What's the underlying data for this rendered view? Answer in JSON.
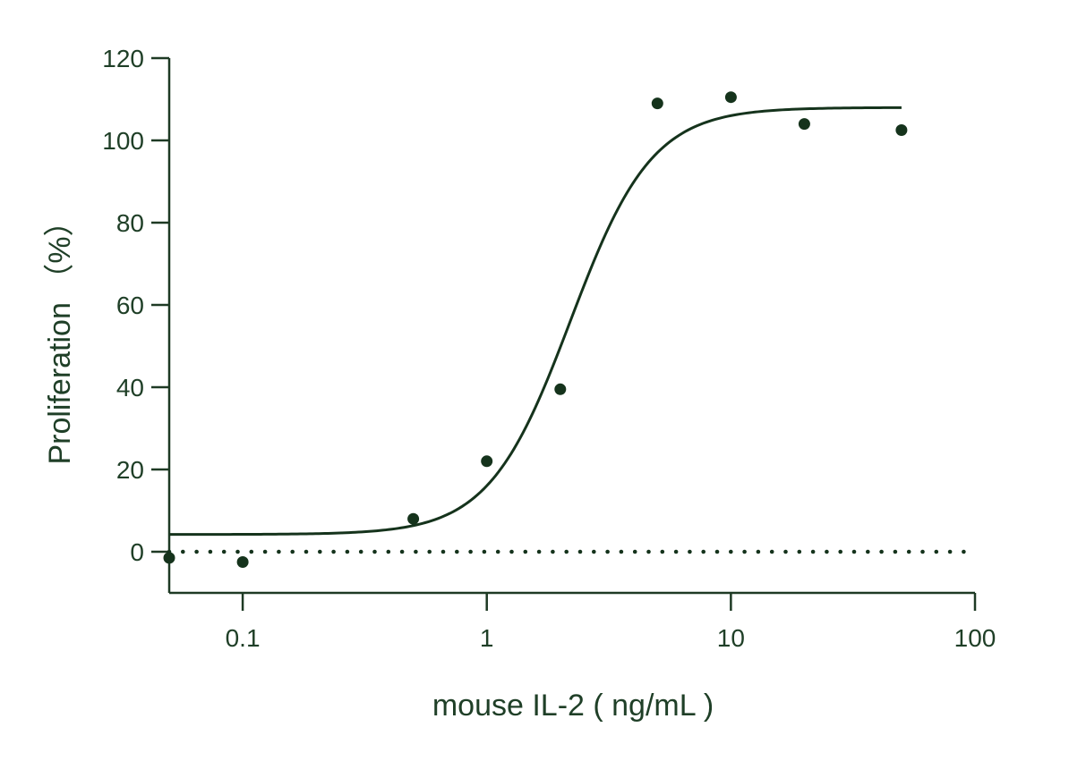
{
  "chart_data": {
    "type": "scatter",
    "title": "",
    "xlabel": "mouse IL-2 ( ng/mL )",
    "ylabel": "Proliferation （%）",
    "x_scale": "log",
    "xlim": [
      0.05,
      100
    ],
    "ylim": [
      -10,
      120
    ],
    "x_ticks": [
      0.1,
      1,
      10,
      100
    ],
    "x_tick_labels": [
      "0.1",
      "1",
      "10",
      "100"
    ],
    "y_ticks": [
      0,
      20,
      40,
      60,
      80,
      100,
      120
    ],
    "y_tick_labels": [
      "0",
      "20",
      "40",
      "60",
      "80",
      "100",
      "120"
    ],
    "grid": false,
    "legend": "none",
    "baseline": {
      "y": 0,
      "style": "dotted",
      "x_end": 90
    },
    "series": [
      {
        "marker": "circle",
        "points": [
          {
            "x": 0.05,
            "y": -1.5
          },
          {
            "x": 0.1,
            "y": -2.5
          },
          {
            "x": 0.5,
            "y": 8
          },
          {
            "x": 1,
            "y": 22
          },
          {
            "x": 2,
            "y": 39.5
          },
          {
            "x": 5,
            "y": 109
          },
          {
            "x": 10,
            "y": 110.5
          },
          {
            "x": 20,
            "y": 104
          },
          {
            "x": 50,
            "y": 102.5
          }
        ]
      }
    ],
    "fit_curve": {
      "model": "4PL",
      "bottom": 4.2,
      "top": 108,
      "ec50": 2.2,
      "hill": 2.6,
      "x_range": [
        0.05,
        50
      ]
    },
    "colors": {
      "ink": "#15331c",
      "axis": "#1e3a24",
      "text": "#1f3f27"
    }
  }
}
